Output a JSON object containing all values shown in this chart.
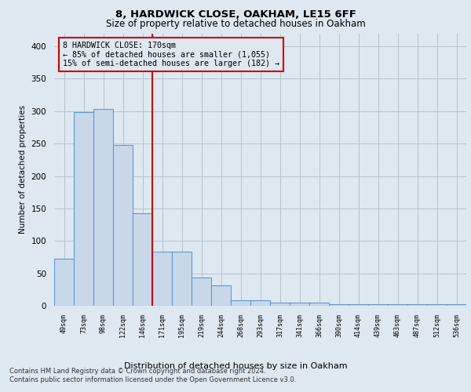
{
  "title1": "8, HARDWICK CLOSE, OAKHAM, LE15 6FF",
  "title2": "Size of property relative to detached houses in Oakham",
  "xlabel": "Distribution of detached houses by size in Oakham",
  "ylabel": "Number of detached properties",
  "categories": [
    "49sqm",
    "73sqm",
    "98sqm",
    "122sqm",
    "146sqm",
    "171sqm",
    "195sqm",
    "219sqm",
    "244sqm",
    "268sqm",
    "293sqm",
    "317sqm",
    "341sqm",
    "366sqm",
    "390sqm",
    "414sqm",
    "439sqm",
    "463sqm",
    "487sqm",
    "512sqm",
    "536sqm"
  ],
  "values": [
    72,
    298,
    303,
    248,
    143,
    83,
    83,
    44,
    31,
    8,
    8,
    5,
    5,
    5,
    3,
    3,
    3,
    3,
    3,
    3,
    3
  ],
  "bar_color": "#c8d8e8",
  "bar_edge_color": "#5b9bd5",
  "highlight_index": 5,
  "highlight_line_color": "#cc0000",
  "annotation_line1": "8 HARDWICK CLOSE: 170sqm",
  "annotation_line2": "← 85% of detached houses are smaller (1,055)",
  "annotation_line3": "15% of semi-detached houses are larger (182) →",
  "ylim": [
    0,
    420
  ],
  "yticks": [
    0,
    50,
    100,
    150,
    200,
    250,
    300,
    350,
    400
  ],
  "background_color": "#dde8f0",
  "footer1": "Contains HM Land Registry data © Crown copyright and database right 2024.",
  "footer2": "Contains public sector information licensed under the Open Government Licence v3.0."
}
